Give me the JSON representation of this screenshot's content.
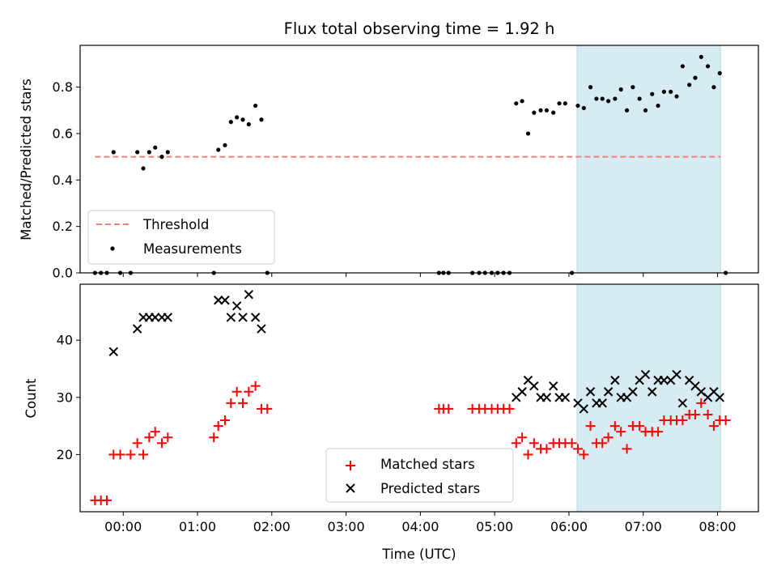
{
  "chart_data": {
    "type": "scatter",
    "title": "Flux total observing time = 1.92 h",
    "xlabel": "Time (UTC)",
    "x_ticks": [
      {
        "label": "00:00",
        "h": 0
      },
      {
        "label": "01:00",
        "h": 1
      },
      {
        "label": "02:00",
        "h": 2
      },
      {
        "label": "03:00",
        "h": 3
      },
      {
        "label": "04:00",
        "h": 4
      },
      {
        "label": "05:00",
        "h": 5
      },
      {
        "label": "06:00",
        "h": 6
      },
      {
        "label": "07:00",
        "h": 7
      },
      {
        "label": "08:00",
        "h": 8
      }
    ],
    "xlim": [
      -0.58,
      8.55
    ],
    "highlight_span": {
      "start_h": 6.11,
      "end_h": 8.04,
      "color": "#add8e6"
    },
    "panels": [
      {
        "name": "ratio",
        "ylabel": "Matched/Predicted stars",
        "ylim": [
          0,
          0.98
        ],
        "y_ticks": [
          0.0,
          0.2,
          0.4,
          0.6,
          0.8
        ],
        "y_tick_labels": [
          "0.0",
          "0.2",
          "0.4",
          "0.6",
          "0.8"
        ],
        "threshold": {
          "name": "Threshold",
          "value": 0.5,
          "x_start": -0.38,
          "x_end": 8.04,
          "color": "#f08080"
        },
        "legend": {
          "position": "lower left",
          "entries": [
            "Threshold",
            "Measurements"
          ]
        },
        "series": [
          {
            "name": "Measurements",
            "marker": "dot",
            "color": "#000000",
            "points": [
              [
                -0.38,
                0.0
              ],
              [
                -0.3,
                0.0
              ],
              [
                -0.22,
                0.0
              ],
              [
                -0.13,
                0.52
              ],
              [
                -0.04,
                0.0
              ],
              [
                0.1,
                0.0
              ],
              [
                0.19,
                0.52
              ],
              [
                0.27,
                0.45
              ],
              [
                0.35,
                0.52
              ],
              [
                0.43,
                0.54
              ],
              [
                0.52,
                0.5
              ],
              [
                0.6,
                0.52
              ],
              [
                1.22,
                0.0
              ],
              [
                1.28,
                0.53
              ],
              [
                1.37,
                0.55
              ],
              [
                1.45,
                0.65
              ],
              [
                1.53,
                0.67
              ],
              [
                1.61,
                0.66
              ],
              [
                1.69,
                0.64
              ],
              [
                1.78,
                0.72
              ],
              [
                1.86,
                0.66
              ],
              [
                1.94,
                0.0
              ],
              [
                4.25,
                0.0
              ],
              [
                4.31,
                0.0
              ],
              [
                4.38,
                0.0
              ],
              [
                4.7,
                0.0
              ],
              [
                4.79,
                0.0
              ],
              [
                4.87,
                0.0
              ],
              [
                4.96,
                0.0
              ],
              [
                5.04,
                0.0
              ],
              [
                5.12,
                0.0
              ],
              [
                5.2,
                0.0
              ],
              [
                5.29,
                0.73
              ],
              [
                5.37,
                0.74
              ],
              [
                5.45,
                0.6
              ],
              [
                5.53,
                0.69
              ],
              [
                5.62,
                0.7
              ],
              [
                5.7,
                0.7
              ],
              [
                5.79,
                0.69
              ],
              [
                5.87,
                0.73
              ],
              [
                5.95,
                0.73
              ],
              [
                6.04,
                0.0
              ],
              [
                6.12,
                0.72
              ],
              [
                6.2,
                0.71
              ],
              [
                6.29,
                0.8
              ],
              [
                6.37,
                0.75
              ],
              [
                6.45,
                0.75
              ],
              [
                6.53,
                0.74
              ],
              [
                6.62,
                0.75
              ],
              [
                6.7,
                0.79
              ],
              [
                6.78,
                0.7
              ],
              [
                6.86,
                0.8
              ],
              [
                6.95,
                0.75
              ],
              [
                7.03,
                0.7
              ],
              [
                7.12,
                0.77
              ],
              [
                7.2,
                0.72
              ],
              [
                7.28,
                0.78
              ],
              [
                7.37,
                0.78
              ],
              [
                7.45,
                0.76
              ],
              [
                7.53,
                0.89
              ],
              [
                7.62,
                0.81
              ],
              [
                7.7,
                0.84
              ],
              [
                7.78,
                0.93
              ],
              [
                7.87,
                0.89
              ],
              [
                7.95,
                0.8
              ],
              [
                8.03,
                0.86
              ],
              [
                8.11,
                0.0
              ]
            ]
          }
        ]
      },
      {
        "name": "counts",
        "ylabel": "Count",
        "ylim": [
          10,
          49.8
        ],
        "y_ticks": [
          20,
          30,
          40
        ],
        "y_tick_labels": [
          "20",
          "30",
          "40"
        ],
        "legend": {
          "position": "lower center",
          "entries": [
            "Matched stars",
            "Predicted stars"
          ]
        },
        "series": [
          {
            "name": "Matched stars",
            "marker": "plus",
            "color": "#ff0000",
            "points": [
              [
                -0.38,
                12
              ],
              [
                -0.3,
                12
              ],
              [
                -0.22,
                12
              ],
              [
                -0.13,
                20
              ],
              [
                -0.04,
                20
              ],
              [
                0.1,
                20
              ],
              [
                0.19,
                22
              ],
              [
                0.27,
                20
              ],
              [
                0.35,
                23
              ],
              [
                0.43,
                24
              ],
              [
                0.52,
                22
              ],
              [
                0.6,
                23
              ],
              [
                1.22,
                23
              ],
              [
                1.28,
                25
              ],
              [
                1.37,
                26
              ],
              [
                1.45,
                29
              ],
              [
                1.53,
                31
              ],
              [
                1.61,
                29
              ],
              [
                1.69,
                31
              ],
              [
                1.78,
                32
              ],
              [
                1.86,
                28
              ],
              [
                1.94,
                28
              ],
              [
                4.25,
                28
              ],
              [
                4.31,
                28
              ],
              [
                4.38,
                28
              ],
              [
                4.7,
                28
              ],
              [
                4.79,
                28
              ],
              [
                4.87,
                28
              ],
              [
                4.96,
                28
              ],
              [
                5.04,
                28
              ],
              [
                5.12,
                28
              ],
              [
                5.2,
                28
              ],
              [
                5.29,
                22
              ],
              [
                5.37,
                23
              ],
              [
                5.45,
                20
              ],
              [
                5.53,
                22
              ],
              [
                5.62,
                21
              ],
              [
                5.7,
                21
              ],
              [
                5.79,
                22
              ],
              [
                5.87,
                22
              ],
              [
                5.95,
                22
              ],
              [
                6.04,
                22
              ],
              [
                6.12,
                21
              ],
              [
                6.2,
                20
              ],
              [
                6.29,
                25
              ],
              [
                6.37,
                22
              ],
              [
                6.45,
                22
              ],
              [
                6.53,
                23
              ],
              [
                6.62,
                25
              ],
              [
                6.7,
                24
              ],
              [
                6.78,
                21
              ],
              [
                6.86,
                25
              ],
              [
                6.95,
                25
              ],
              [
                7.03,
                24
              ],
              [
                7.12,
                24
              ],
              [
                7.2,
                24
              ],
              [
                7.28,
                26
              ],
              [
                7.37,
                26
              ],
              [
                7.45,
                26
              ],
              [
                7.53,
                26
              ],
              [
                7.62,
                27
              ],
              [
                7.7,
                27
              ],
              [
                7.78,
                29
              ],
              [
                7.87,
                27
              ],
              [
                7.95,
                25
              ],
              [
                8.03,
                26
              ],
              [
                8.11,
                26
              ]
            ]
          },
          {
            "name": "Predicted stars",
            "marker": "x",
            "color": "#000000",
            "points": [
              [
                -0.13,
                38
              ],
              [
                0.19,
                42
              ],
              [
                0.27,
                44
              ],
              [
                0.35,
                44
              ],
              [
                0.43,
                44
              ],
              [
                0.52,
                44
              ],
              [
                0.6,
                44
              ],
              [
                1.28,
                47
              ],
              [
                1.37,
                47
              ],
              [
                1.45,
                44
              ],
              [
                1.53,
                46
              ],
              [
                1.61,
                44
              ],
              [
                1.69,
                48
              ],
              [
                1.78,
                44
              ],
              [
                1.86,
                42
              ],
              [
                5.29,
                30
              ],
              [
                5.37,
                31
              ],
              [
                5.45,
                33
              ],
              [
                5.53,
                32
              ],
              [
                5.62,
                30
              ],
              [
                5.7,
                30
              ],
              [
                5.79,
                32
              ],
              [
                5.87,
                30
              ],
              [
                5.95,
                30
              ],
              [
                6.12,
                29
              ],
              [
                6.2,
                28
              ],
              [
                6.29,
                31
              ],
              [
                6.37,
                29
              ],
              [
                6.45,
                29
              ],
              [
                6.53,
                31
              ],
              [
                6.62,
                33
              ],
              [
                6.7,
                30
              ],
              [
                6.78,
                30
              ],
              [
                6.86,
                31
              ],
              [
                6.95,
                33
              ],
              [
                7.03,
                34
              ],
              [
                7.12,
                31
              ],
              [
                7.2,
                33
              ],
              [
                7.28,
                33
              ],
              [
                7.37,
                33
              ],
              [
                7.45,
                34
              ],
              [
                7.53,
                29
              ],
              [
                7.62,
                33
              ],
              [
                7.7,
                32
              ],
              [
                7.78,
                31
              ],
              [
                7.87,
                30
              ],
              [
                7.95,
                31
              ],
              [
                8.03,
                30
              ]
            ]
          }
        ]
      }
    ]
  }
}
